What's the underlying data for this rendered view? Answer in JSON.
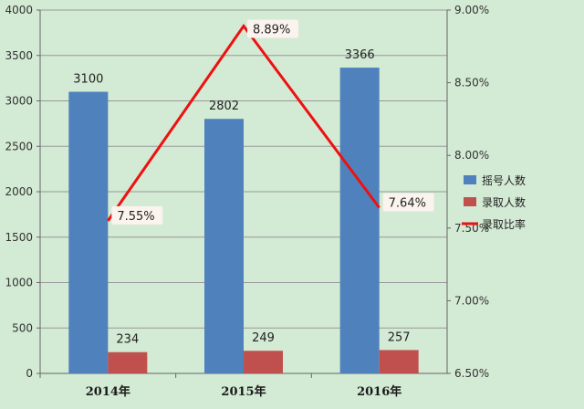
{
  "chart_data": {
    "type": "bar",
    "title": "",
    "categories": [
      "2014年",
      "2015年",
      "2016年"
    ],
    "left_axis": {
      "min": 0,
      "max": 4000,
      "step": 500,
      "ticks": [
        "0",
        "500",
        "1000",
        "1500",
        "2000",
        "2500",
        "3000",
        "3500",
        "4000"
      ]
    },
    "right_axis": {
      "min": 6.5,
      "max": 9.0,
      "step": 0.5,
      "ticks": [
        "6.50%",
        "7.00%",
        "7.50%",
        "8.00%",
        "8.50%",
        "9.00%"
      ]
    },
    "series": [
      {
        "name": "摇号人数",
        "type": "bar",
        "axis": "left",
        "color": "#4f81bd",
        "values": [
          3100,
          2802,
          3366
        ],
        "labels": [
          "3100",
          "2802",
          "3366"
        ]
      },
      {
        "name": "录取人数",
        "type": "bar",
        "axis": "left",
        "color": "#c0504d",
        "values": [
          234,
          249,
          257
        ],
        "labels": [
          "234",
          "249",
          "257"
        ]
      },
      {
        "name": "录取比率",
        "type": "line",
        "axis": "right",
        "color": "#ee1111",
        "values": [
          7.55,
          8.89,
          7.64
        ],
        "labels": [
          "7.55%",
          "8.89%",
          "7.64%"
        ]
      }
    ],
    "grid": true,
    "legend_position": "right"
  }
}
